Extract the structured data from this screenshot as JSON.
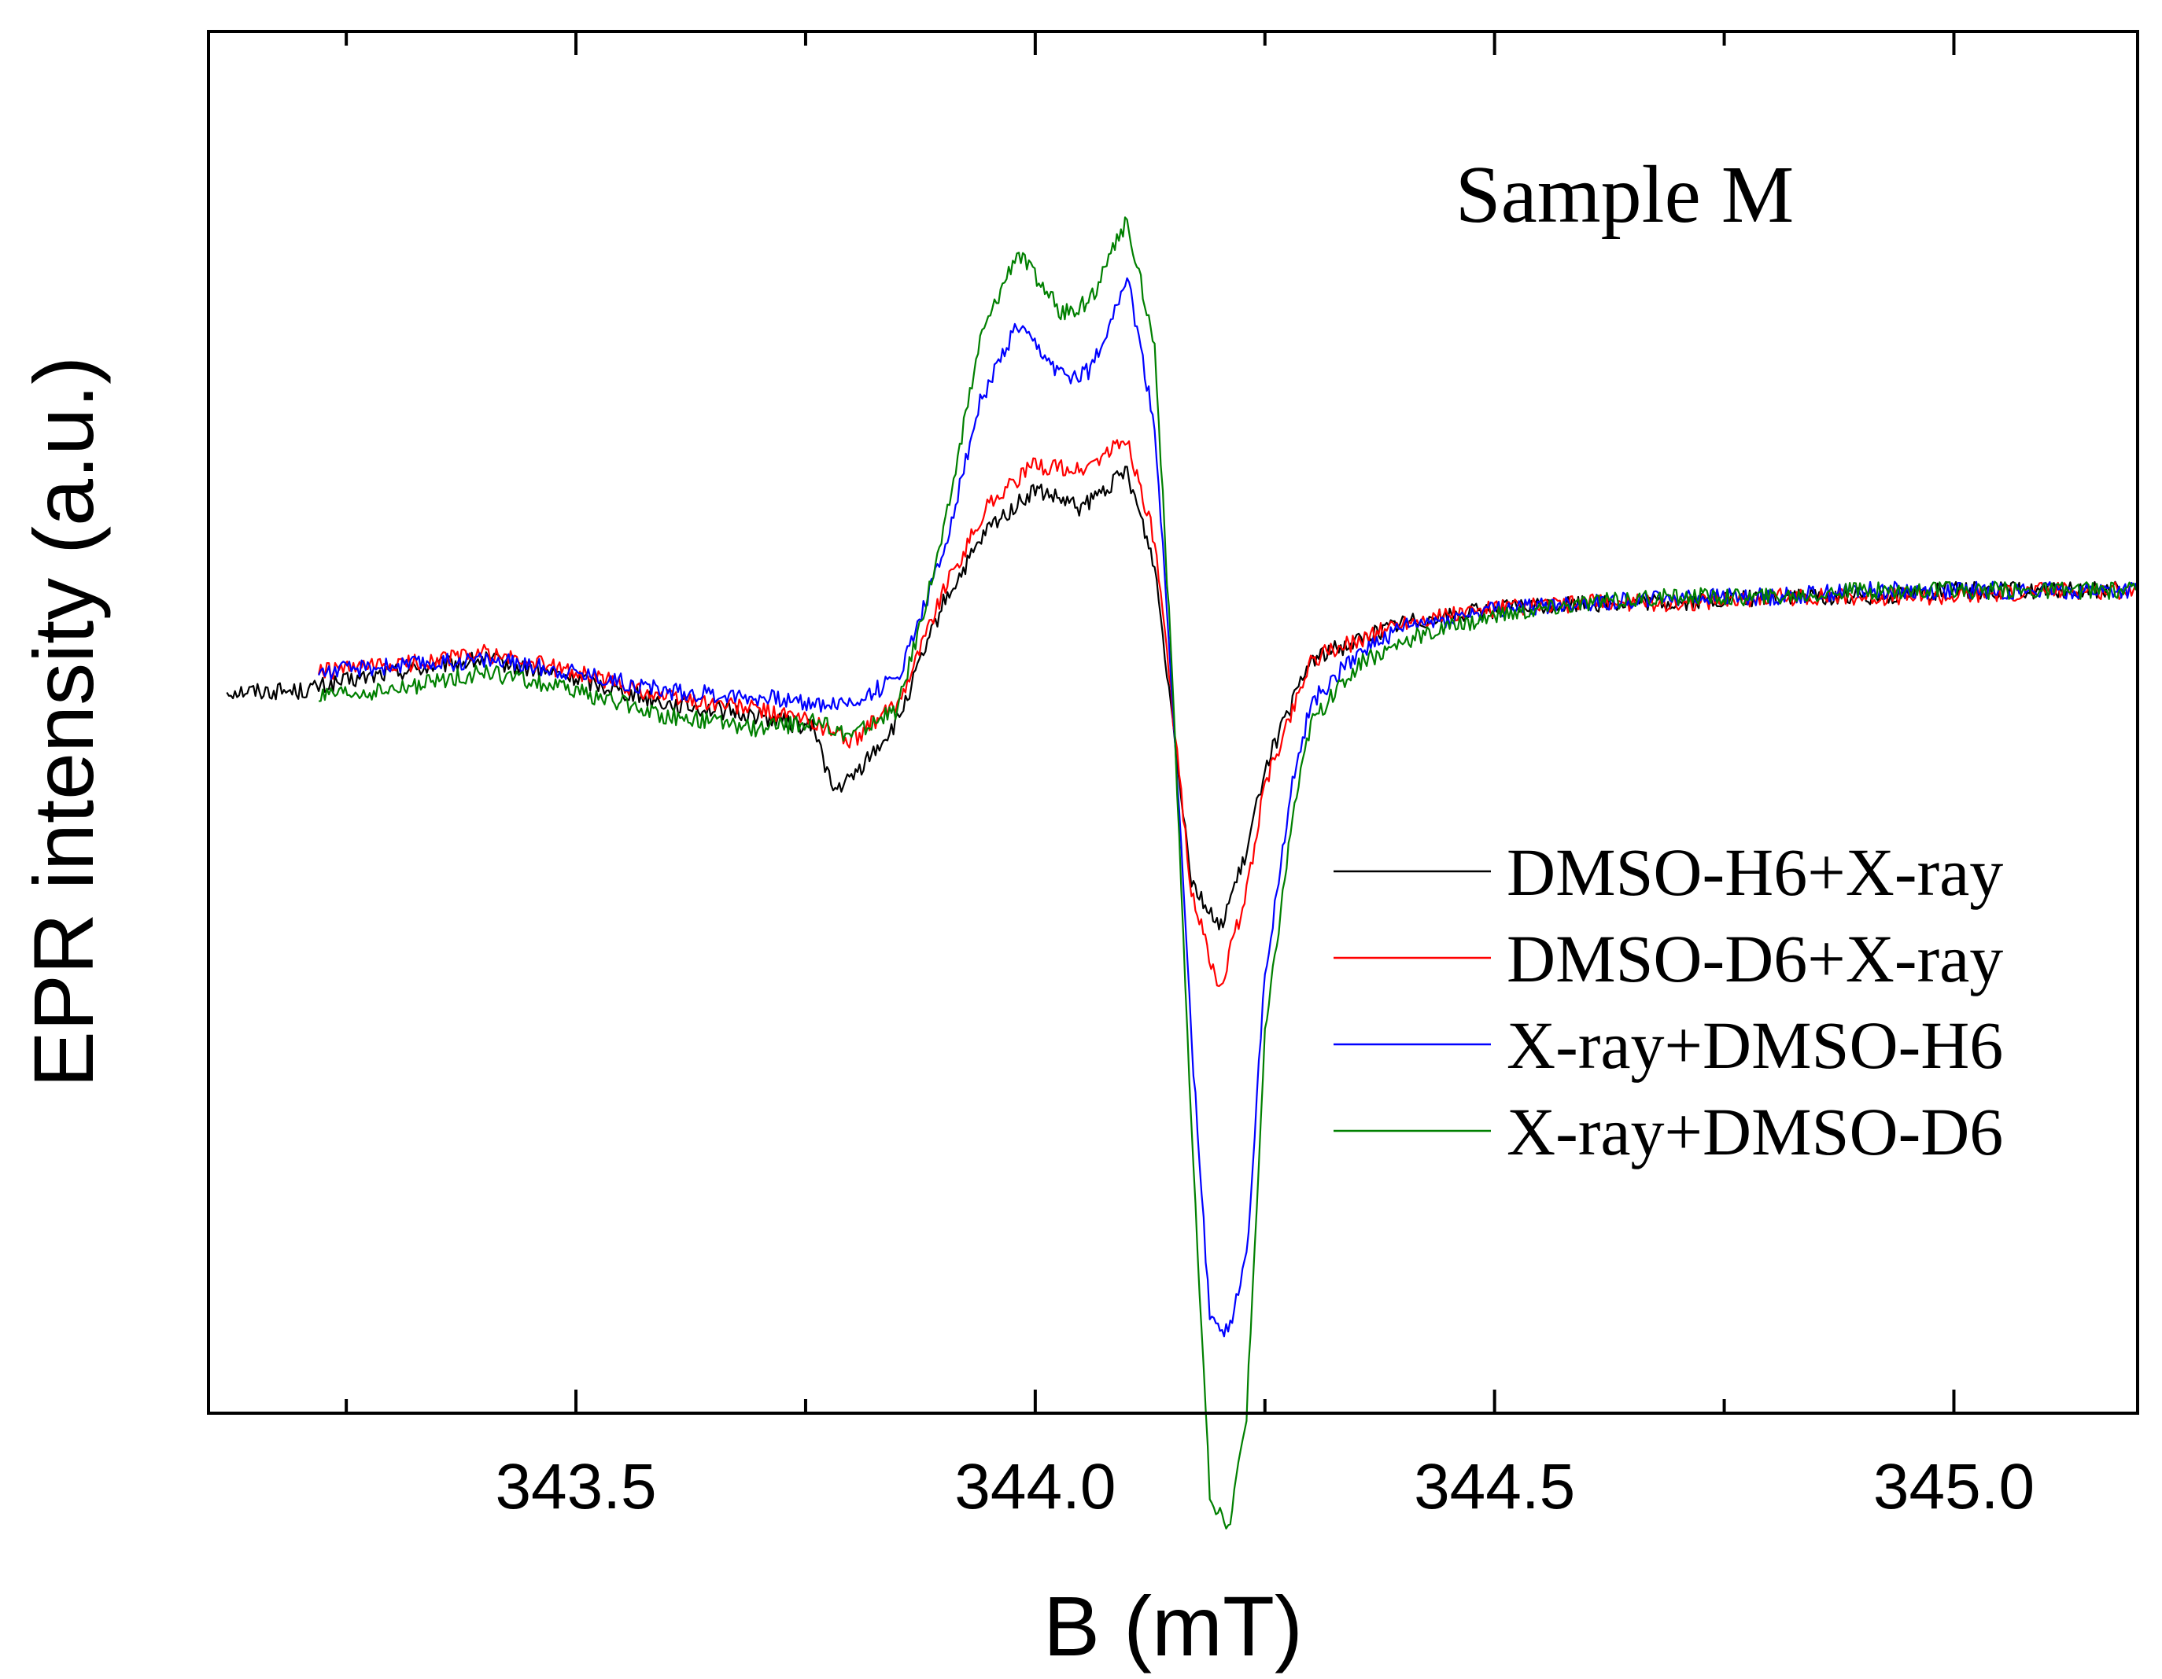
{
  "chart_data": {
    "type": "line",
    "title": "Sample M",
    "xlabel": "B (mT)",
    "ylabel": "EPR intensity (a.u.)",
    "xlim": [
      343.1,
      345.2
    ],
    "ylim": [
      -1.15,
      1.05
    ],
    "xticks": [
      {
        "value": 343.5,
        "label": "343.5"
      },
      {
        "value": 344.0,
        "label": "344.0"
      },
      {
        "value": 344.5,
        "label": "344.5"
      },
      {
        "value": 345.0,
        "label": "345.0"
      }
    ],
    "minor_xticks": [
      343.25,
      343.75,
      344.25,
      344.75
    ],
    "yticks_shown": false,
    "grid": false,
    "legend_position": "center-right",
    "series": [
      {
        "name": "DMSO-H6+X-ray",
        "color": "#000000",
        "x": [
          343.12,
          343.2,
          343.3,
          343.4,
          343.5,
          343.6,
          343.7,
          343.76,
          343.78,
          343.8,
          343.85,
          343.9,
          343.95,
          344.0,
          344.05,
          344.1,
          344.13,
          344.15,
          344.17,
          344.2,
          344.23,
          344.25,
          344.28,
          344.3,
          344.35,
          344.4,
          344.5,
          344.6,
          344.7,
          344.8,
          344.9,
          345.0,
          345.1,
          345.18
        ],
        "y": [
          0.0,
          0.0,
          0.03,
          0.05,
          0.02,
          -0.02,
          -0.04,
          -0.06,
          -0.16,
          -0.14,
          -0.05,
          0.14,
          0.26,
          0.32,
          0.29,
          0.35,
          0.2,
          -0.05,
          -0.3,
          -0.38,
          -0.26,
          -0.12,
          -0.02,
          0.05,
          0.08,
          0.11,
          0.13,
          0.14,
          0.14,
          0.15,
          0.15,
          0.16,
          0.16,
          0.16
        ]
      },
      {
        "name": "DMSO-D6+X-ray",
        "color": "#ff0000",
        "x": [
          343.22,
          343.3,
          343.4,
          343.5,
          343.6,
          343.7,
          343.76,
          343.8,
          343.85,
          343.9,
          343.95,
          344.0,
          344.05,
          344.1,
          344.13,
          344.15,
          344.17,
          344.2,
          344.23,
          344.25,
          344.28,
          344.3,
          344.35,
          344.4,
          344.5,
          344.6,
          344.7,
          344.8,
          344.9,
          345.0,
          345.1,
          345.2
        ],
        "y": [
          0.03,
          0.04,
          0.06,
          0.03,
          -0.01,
          -0.03,
          -0.05,
          -0.08,
          -0.02,
          0.16,
          0.3,
          0.36,
          0.35,
          0.4,
          0.24,
          -0.04,
          -0.32,
          -0.48,
          -0.32,
          -0.15,
          -0.03,
          0.05,
          0.08,
          0.11,
          0.13,
          0.14,
          0.14,
          0.15,
          0.15,
          0.15,
          0.16,
          0.16
        ]
      },
      {
        "name": "X-ray+DMSO-H6",
        "color": "#0000ff",
        "x": [
          343.22,
          343.3,
          343.4,
          343.5,
          343.6,
          343.7,
          343.76,
          343.8,
          343.85,
          343.9,
          343.94,
          343.98,
          344.03,
          344.06,
          344.1,
          344.13,
          344.15,
          344.17,
          344.19,
          344.21,
          344.23,
          344.25,
          344.28,
          344.3,
          344.35,
          344.4,
          344.5,
          344.6,
          344.7,
          344.8,
          344.9,
          345.0,
          345.1,
          345.2
        ],
        "y": [
          0.03,
          0.04,
          0.05,
          0.03,
          0.0,
          -0.01,
          -0.02,
          -0.02,
          0.02,
          0.22,
          0.46,
          0.58,
          0.5,
          0.51,
          0.66,
          0.42,
          -0.02,
          -0.55,
          -1.0,
          -1.02,
          -0.9,
          -0.45,
          -0.15,
          -0.02,
          0.06,
          0.1,
          0.13,
          0.14,
          0.15,
          0.15,
          0.16,
          0.16,
          0.16,
          0.16
        ]
      },
      {
        "name": "X-ray+DMSO-D6",
        "color": "#008000",
        "x": [
          343.22,
          343.3,
          343.4,
          343.5,
          343.6,
          343.7,
          343.76,
          343.8,
          343.85,
          343.9,
          343.94,
          343.98,
          344.03,
          344.06,
          344.1,
          344.13,
          344.15,
          344.17,
          344.19,
          344.21,
          344.23,
          344.25,
          344.28,
          344.3,
          344.35,
          344.4,
          344.5,
          344.6,
          344.7,
          344.8,
          344.9,
          345.0,
          345.1,
          345.2
        ],
        "y": [
          -0.01,
          0.0,
          0.03,
          0.0,
          -0.04,
          -0.06,
          -0.05,
          -0.07,
          -0.03,
          0.25,
          0.56,
          0.7,
          0.6,
          0.62,
          0.75,
          0.55,
          0.0,
          -0.7,
          -1.28,
          -1.34,
          -1.15,
          -0.55,
          -0.2,
          -0.05,
          0.04,
          0.08,
          0.12,
          0.14,
          0.15,
          0.15,
          0.16,
          0.16,
          0.16,
          0.16
        ]
      }
    ]
  }
}
